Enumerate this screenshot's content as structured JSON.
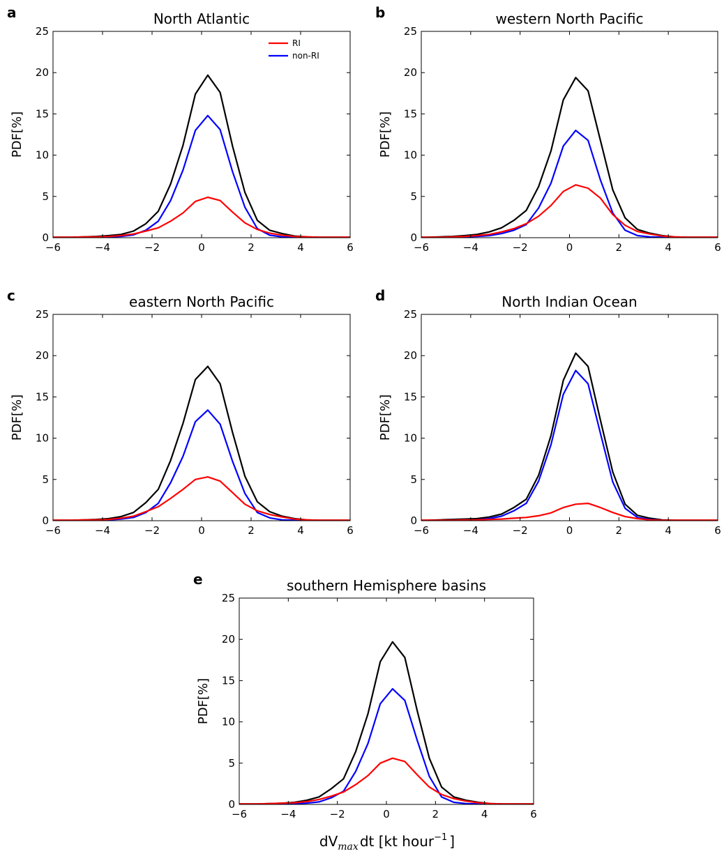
{
  "x_axis_label": "dV",
  "x_axis_label_sub": "max",
  "x_axis_label_rest": "dt [kt hour",
  "x_axis_label_sup": "−1",
  "x_axis_label_close": "]",
  "colors": {
    "total": "#000000",
    "RI": "#ff0000",
    "nonRI": "#0000ff"
  },
  "legend": {
    "RI": "RI",
    "nonRI": "non-RI"
  },
  "chart_data": [
    {
      "type": "line",
      "letter": "a",
      "title": "North Atlantic",
      "ylabel": "PDF[%]",
      "xlim": [
        -6,
        6
      ],
      "ylim": [
        0,
        25
      ],
      "xticks": [
        "−6",
        "−4",
        "−2",
        "0",
        "2",
        "4",
        "6"
      ],
      "yticks": [
        "0",
        "5",
        "10",
        "15",
        "20",
        "25"
      ],
      "legend_entries": [
        "RI",
        "non-RI"
      ],
      "legend_position": "top-right",
      "x": [
        -6.25,
        -5.75,
        -5.25,
        -4.75,
        -4.25,
        -3.75,
        -3.25,
        -2.75,
        -2.25,
        -1.75,
        -1.25,
        -0.75,
        -0.25,
        0.25,
        0.75,
        1.25,
        1.75,
        2.25,
        2.75,
        3.25,
        3.75,
        4.25,
        4.75,
        5.25,
        5.75,
        6.25
      ],
      "series": [
        {
          "name": "",
          "color": "#000000",
          "values": [
            0.05,
            0.05,
            0.05,
            0.1,
            0.15,
            0.25,
            0.4,
            0.8,
            1.7,
            3.2,
            6.5,
            11.2,
            17.4,
            19.7,
            17.6,
            11.1,
            5.5,
            2.1,
            0.9,
            0.5,
            0.2,
            0.1,
            0.05,
            0.05,
            0.05,
            0.05
          ]
        },
        {
          "name": "non-RI",
          "color": "#0000ff",
          "values": [
            0.0,
            0.0,
            0.0,
            0.0,
            0.05,
            0.1,
            0.15,
            0.35,
            0.9,
            2.0,
            4.5,
            8.2,
            13.0,
            14.8,
            13.1,
            8.0,
            3.7,
            1.1,
            0.3,
            0.1,
            0.05,
            0.0,
            0.0,
            0.0,
            0.0,
            0.0
          ]
        },
        {
          "name": "RI",
          "color": "#ff0000",
          "values": [
            0.05,
            0.05,
            0.05,
            0.1,
            0.1,
            0.15,
            0.25,
            0.45,
            0.8,
            1.2,
            2.0,
            3.0,
            4.4,
            4.9,
            4.5,
            3.1,
            1.8,
            1.0,
            0.55,
            0.3,
            0.15,
            0.1,
            0.05,
            0.05,
            0.05,
            0.05
          ]
        }
      ]
    },
    {
      "type": "line",
      "letter": "b",
      "title": "western North Pacific",
      "ylabel": "PDF[%]",
      "xlim": [
        -6,
        6
      ],
      "ylim": [
        0,
        25
      ],
      "xticks": [
        "−6",
        "−4",
        "−2",
        "0",
        "2",
        "4",
        "6"
      ],
      "yticks": [
        "0",
        "5",
        "10",
        "15",
        "20",
        "25"
      ],
      "x": [
        -6.25,
        -5.75,
        -5.25,
        -4.75,
        -4.25,
        -3.75,
        -3.25,
        -2.75,
        -2.25,
        -1.75,
        -1.25,
        -0.75,
        -0.25,
        0.25,
        0.75,
        1.25,
        1.75,
        2.25,
        2.75,
        3.25,
        3.75,
        4.25,
        4.75,
        5.25,
        5.75,
        6.25
      ],
      "series": [
        {
          "name": "",
          "color": "#000000",
          "values": [
            0.05,
            0.05,
            0.1,
            0.15,
            0.25,
            0.4,
            0.7,
            1.2,
            2.1,
            3.3,
            6.2,
            10.5,
            16.7,
            19.4,
            17.8,
            11.8,
            5.8,
            2.4,
            1.0,
            0.55,
            0.25,
            0.1,
            0.05,
            0.05,
            0.05,
            0.05
          ]
        },
        {
          "name": "non-RI",
          "color": "#0000ff",
          "values": [
            0.0,
            0.0,
            0.0,
            0.05,
            0.1,
            0.15,
            0.25,
            0.5,
            0.9,
            1.6,
            3.6,
            6.6,
            11.1,
            13.0,
            11.8,
            7.0,
            3.0,
            0.9,
            0.25,
            0.1,
            0.05,
            0.0,
            0.0,
            0.0,
            0.0,
            0.0
          ]
        },
        {
          "name": "RI",
          "color": "#ff0000",
          "values": [
            0.05,
            0.05,
            0.05,
            0.1,
            0.15,
            0.25,
            0.4,
            0.7,
            1.1,
            1.7,
            2.6,
            3.9,
            5.6,
            6.4,
            6.0,
            4.8,
            2.8,
            1.5,
            0.75,
            0.45,
            0.2,
            0.1,
            0.05,
            0.05,
            0.05,
            0.05
          ]
        }
      ]
    },
    {
      "type": "line",
      "letter": "c",
      "title": "eastern North Pacific",
      "ylabel": "PDF[%]",
      "xlim": [
        -6,
        6
      ],
      "ylim": [
        0,
        25
      ],
      "xticks": [
        "−6",
        "−4",
        "−2",
        "0",
        "2",
        "4",
        "6"
      ],
      "yticks": [
        "0",
        "5",
        "10",
        "15",
        "20",
        "25"
      ],
      "x": [
        -6.25,
        -5.75,
        -5.25,
        -4.75,
        -4.25,
        -3.75,
        -3.25,
        -2.75,
        -2.25,
        -1.75,
        -1.25,
        -0.75,
        -0.25,
        0.25,
        0.75,
        1.25,
        1.75,
        2.25,
        2.75,
        3.25,
        3.75,
        4.25,
        4.75,
        5.25,
        5.75,
        6.25
      ],
      "series": [
        {
          "name": "",
          "color": "#000000",
          "values": [
            0.05,
            0.05,
            0.05,
            0.1,
            0.15,
            0.25,
            0.5,
            1.0,
            2.2,
            3.8,
            7.3,
            11.8,
            17.1,
            18.7,
            16.6,
            10.7,
            5.4,
            2.3,
            1.1,
            0.55,
            0.25,
            0.1,
            0.05,
            0.05,
            0.05,
            0.05
          ]
        },
        {
          "name": "non-RI",
          "color": "#0000ff",
          "values": [
            0.0,
            0.0,
            0.0,
            0.0,
            0.05,
            0.1,
            0.2,
            0.4,
            1.0,
            2.1,
            4.6,
            7.8,
            12.0,
            13.4,
            11.7,
            7.2,
            3.3,
            1.0,
            0.35,
            0.1,
            0.05,
            0.0,
            0.0,
            0.0,
            0.0,
            0.0
          ]
        },
        {
          "name": "RI",
          "color": "#ff0000",
          "values": [
            0.05,
            0.05,
            0.05,
            0.1,
            0.1,
            0.15,
            0.3,
            0.55,
            1.1,
            1.7,
            2.7,
            3.8,
            5.0,
            5.3,
            4.8,
            3.4,
            2.0,
            1.2,
            0.75,
            0.45,
            0.2,
            0.1,
            0.05,
            0.05,
            0.05,
            0.05
          ]
        }
      ]
    },
    {
      "type": "line",
      "letter": "d",
      "title": "North Indian Ocean",
      "ylabel": "PDF[%]",
      "xlim": [
        -6,
        6
      ],
      "ylim": [
        0,
        25
      ],
      "xticks": [
        "−6",
        "−4",
        "−2",
        "0",
        "2",
        "4",
        "6"
      ],
      "yticks": [
        "0",
        "5",
        "10",
        "15",
        "20",
        "25"
      ],
      "x": [
        -6.25,
        -5.75,
        -5.25,
        -4.75,
        -4.25,
        -3.75,
        -3.25,
        -2.75,
        -2.25,
        -1.75,
        -1.25,
        -0.75,
        -0.25,
        0.25,
        0.75,
        1.25,
        1.75,
        2.25,
        2.75,
        3.25,
        3.75,
        4.25,
        4.75,
        5.25,
        5.75,
        6.25
      ],
      "series": [
        {
          "name": "",
          "color": "#000000",
          "values": [
            0.05,
            0.05,
            0.1,
            0.15,
            0.2,
            0.25,
            0.45,
            0.8,
            1.6,
            2.6,
            5.5,
            10.3,
            17.0,
            20.3,
            18.7,
            12.2,
            5.9,
            2.0,
            0.65,
            0.3,
            0.1,
            0.05,
            0.05,
            0.05,
            0.05,
            0.05
          ]
        },
        {
          "name": "non-RI",
          "color": "#0000ff",
          "values": [
            0.0,
            0.0,
            0.0,
            0.05,
            0.1,
            0.1,
            0.25,
            0.55,
            1.2,
            2.1,
            4.8,
            9.2,
            15.3,
            18.2,
            16.6,
            10.6,
            4.7,
            1.5,
            0.4,
            0.15,
            0.05,
            0.0,
            0.0,
            0.0,
            0.0,
            0.0
          ]
        },
        {
          "name": "RI",
          "color": "#ff0000",
          "values": [
            0.05,
            0.05,
            0.05,
            0.05,
            0.1,
            0.1,
            0.15,
            0.2,
            0.3,
            0.4,
            0.6,
            0.95,
            1.6,
            2.0,
            2.1,
            1.6,
            1.0,
            0.5,
            0.25,
            0.1,
            0.05,
            0.05,
            0.05,
            0.05,
            0.05,
            0.05
          ]
        }
      ]
    },
    {
      "type": "line",
      "letter": "e",
      "title": "southern Hemisphere basins",
      "ylabel": "PDF[%]",
      "xlim": [
        -6,
        6
      ],
      "ylim": [
        0,
        25
      ],
      "xticks": [
        "−6",
        "−4",
        "−2",
        "0",
        "2",
        "4",
        "6"
      ],
      "yticks": [
        "0",
        "5",
        "10",
        "15",
        "20",
        "25"
      ],
      "x": [
        -6.25,
        -5.75,
        -5.25,
        -4.75,
        -4.25,
        -3.75,
        -3.25,
        -2.75,
        -2.25,
        -1.75,
        -1.25,
        -0.75,
        -0.25,
        0.25,
        0.75,
        1.25,
        1.75,
        2.25,
        2.75,
        3.25,
        3.75,
        4.25,
        4.75,
        5.25,
        5.75,
        6.25
      ],
      "series": [
        {
          "name": "",
          "color": "#000000",
          "values": [
            0.05,
            0.05,
            0.05,
            0.1,
            0.15,
            0.25,
            0.5,
            0.9,
            1.9,
            3.1,
            6.4,
            11.0,
            17.3,
            19.7,
            17.8,
            11.4,
            5.6,
            2.1,
            0.9,
            0.5,
            0.25,
            0.1,
            0.05,
            0.05,
            0.05,
            0.05
          ]
        },
        {
          "name": "non-RI",
          "color": "#0000ff",
          "values": [
            0.0,
            0.0,
            0.0,
            0.0,
            0.05,
            0.1,
            0.15,
            0.3,
            0.8,
            1.6,
            4.0,
            7.4,
            12.2,
            14.0,
            12.6,
            7.8,
            3.4,
            0.9,
            0.25,
            0.1,
            0.05,
            0.0,
            0.0,
            0.0,
            0.0,
            0.0
          ]
        },
        {
          "name": "RI",
          "color": "#ff0000",
          "values": [
            0.05,
            0.05,
            0.05,
            0.1,
            0.15,
            0.2,
            0.35,
            0.6,
            1.0,
            1.5,
            2.4,
            3.5,
            5.0,
            5.6,
            5.2,
            3.6,
            2.1,
            1.2,
            0.7,
            0.4,
            0.2,
            0.1,
            0.05,
            0.05,
            0.05,
            0.05
          ]
        }
      ]
    }
  ]
}
